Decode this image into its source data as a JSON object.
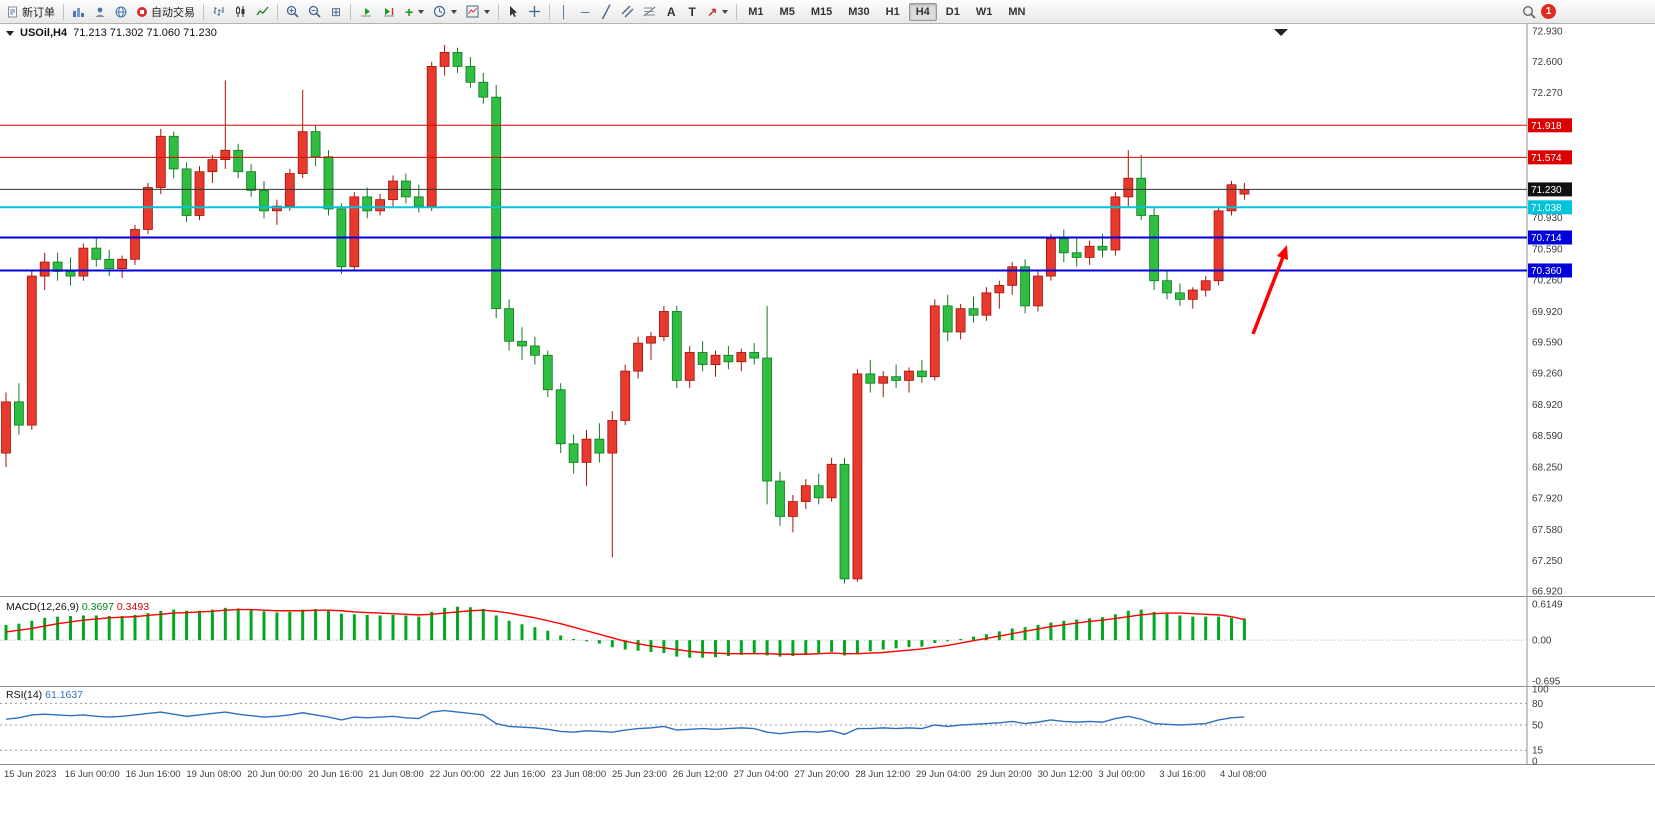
{
  "toolbar": {
    "new_order": "新订单",
    "autotrade": "自动交易",
    "timeframes": [
      "M1",
      "M5",
      "M15",
      "M30",
      "H1",
      "H4",
      "D1",
      "W1",
      "MN"
    ],
    "active_timeframe": "H4",
    "notification_count": "1",
    "icons": {
      "grid": "⊞",
      "indicators_plus": "+",
      "vertical_line": "│",
      "horizontal_line": "─",
      "trendline": "╱",
      "channel": "∥",
      "text": "A",
      "text_label": "T",
      "arrows": "↗"
    }
  },
  "chart": {
    "symbol": "USOil,H4",
    "ohlc": "71.213 71.302 71.060 71.230",
    "macd_name": "MACD(12,26,9)",
    "macd_main_value": "0.3697",
    "macd_signal_value": "0.3493",
    "rsi_name": "RSI(14)",
    "rsi_value": "61.1637"
  },
  "chart_data": {
    "type": "candlestick",
    "symbol": "USOil",
    "timeframe": "H4",
    "ohlc_display": {
      "open": 71.213,
      "high": 71.302,
      "low": 71.06,
      "close": 71.23
    },
    "up_color": "#e8392e",
    "up_border": "#a31408",
    "down_color": "#2fbe41",
    "down_border": "#117a1f",
    "price_axis_labels": [
      72.93,
      72.6,
      72.27,
      70.93,
      70.59,
      70.26,
      69.92,
      69.59,
      69.26,
      68.92,
      68.59,
      68.25,
      67.92,
      67.58,
      67.25,
      66.92
    ],
    "price_lines": [
      {
        "price": 71.918,
        "color": "#dd0000",
        "width": 1,
        "role": "resistance"
      },
      {
        "price": 71.574,
        "color": "#dd0000",
        "width": 1,
        "role": "resistance"
      },
      {
        "price": 71.23,
        "color": "#333333",
        "width": 1,
        "role": "current"
      },
      {
        "price": 71.038,
        "color": "#00c3dc",
        "width": 2,
        "role": "support"
      },
      {
        "price": 70.714,
        "color": "#0000dd",
        "width": 2,
        "role": "support"
      },
      {
        "price": 70.36,
        "color": "#0000dd",
        "width": 2,
        "role": "support"
      }
    ],
    "time_labels": [
      "15 Jun 2023",
      "16 Jun 00:00",
      "16 Jun 16:00",
      "19 Jun 08:00",
      "20 Jun 00:00",
      "20 Jun 16:00",
      "21 Jun 08:00",
      "22 Jun 00:00",
      "22 Jun 16:00",
      "23 Jun 08:00",
      "25 Jun 23:00",
      "26 Jun 12:00",
      "27 Jun 04:00",
      "27 Jun 20:00",
      "28 Jun 12:00",
      "29 Jun 04:00",
      "29 Jun 20:00",
      "30 Jun 12:00",
      "3 Jul 00:00",
      "3 Jul 16:00",
      "4 Jul 08:00"
    ],
    "candles": [
      [
        68.4,
        69.05,
        68.25,
        68.95
      ],
      [
        68.95,
        69.15,
        68.6,
        68.7
      ],
      [
        68.7,
        70.35,
        68.65,
        70.3
      ],
      [
        70.3,
        70.55,
        70.15,
        70.45
      ],
      [
        70.45,
        70.55,
        70.25,
        70.35
      ],
      [
        70.35,
        70.5,
        70.2,
        70.3
      ],
      [
        70.3,
        70.65,
        70.25,
        70.6
      ],
      [
        70.6,
        70.72,
        70.4,
        70.48
      ],
      [
        70.48,
        70.58,
        70.3,
        70.38
      ],
      [
        70.38,
        70.52,
        70.28,
        70.48
      ],
      [
        70.48,
        70.85,
        70.42,
        70.8
      ],
      [
        70.8,
        71.3,
        70.75,
        71.25
      ],
      [
        71.25,
        71.88,
        71.18,
        71.8
      ],
      [
        71.8,
        71.85,
        71.35,
        71.45
      ],
      [
        71.45,
        71.52,
        70.88,
        70.95
      ],
      [
        70.95,
        71.48,
        70.9,
        71.42
      ],
      [
        71.42,
        71.6,
        71.3,
        71.55
      ],
      [
        71.55,
        72.4,
        71.45,
        71.65
      ],
      [
        71.65,
        71.72,
        71.35,
        71.42
      ],
      [
        71.42,
        71.5,
        71.15,
        71.22
      ],
      [
        71.22,
        71.32,
        70.92,
        71.0
      ],
      [
        71.0,
        71.12,
        70.85,
        71.05
      ],
      [
        71.05,
        71.45,
        71.0,
        71.4
      ],
      [
        71.4,
        72.3,
        71.35,
        71.85
      ],
      [
        71.85,
        71.92,
        71.48,
        71.58
      ],
      [
        71.58,
        71.65,
        70.95,
        71.02
      ],
      [
        71.02,
        71.08,
        70.32,
        70.4
      ],
      [
        70.4,
        71.2,
        70.35,
        71.15
      ],
      [
        71.15,
        71.25,
        70.92,
        71.0
      ],
      [
        71.0,
        71.18,
        70.95,
        71.12
      ],
      [
        71.12,
        71.38,
        71.05,
        71.32
      ],
      [
        71.32,
        71.4,
        71.08,
        71.15
      ],
      [
        71.15,
        71.28,
        70.98,
        71.05
      ],
      [
        71.05,
        72.6,
        71.0,
        72.55
      ],
      [
        72.55,
        72.78,
        72.45,
        72.7
      ],
      [
        72.7,
        72.75,
        72.48,
        72.55
      ],
      [
        72.55,
        72.65,
        72.32,
        72.38
      ],
      [
        72.38,
        72.48,
        72.15,
        72.22
      ],
      [
        72.22,
        72.35,
        69.85,
        69.95
      ],
      [
        69.95,
        70.05,
        69.5,
        69.6
      ],
      [
        69.6,
        69.75,
        69.4,
        69.55
      ],
      [
        69.55,
        69.65,
        69.35,
        69.45
      ],
      [
        69.45,
        69.5,
        69.0,
        69.08
      ],
      [
        69.08,
        69.15,
        68.4,
        68.5
      ],
      [
        68.5,
        68.6,
        68.18,
        68.3
      ],
      [
        68.3,
        68.65,
        68.05,
        68.55
      ],
      [
        68.55,
        68.72,
        68.3,
        68.4
      ],
      [
        68.4,
        68.85,
        67.28,
        68.75
      ],
      [
        68.75,
        69.35,
        68.7,
        69.28
      ],
      [
        69.28,
        69.65,
        69.2,
        69.58
      ],
      [
        69.58,
        69.7,
        69.4,
        69.65
      ],
      [
        69.65,
        69.98,
        69.6,
        69.92
      ],
      [
        69.92,
        69.98,
        69.1,
        69.18
      ],
      [
        69.18,
        69.55,
        69.1,
        69.48
      ],
      [
        69.48,
        69.6,
        69.28,
        69.35
      ],
      [
        69.35,
        69.5,
        69.22,
        69.45
      ],
      [
        69.45,
        69.55,
        69.3,
        69.38
      ],
      [
        69.38,
        69.52,
        69.28,
        69.48
      ],
      [
        69.48,
        69.58,
        69.35,
        69.42
      ],
      [
        69.42,
        69.98,
        67.85,
        68.1
      ],
      [
        68.1,
        68.2,
        67.62,
        67.72
      ],
      [
        67.72,
        67.95,
        67.55,
        67.88
      ],
      [
        67.88,
        68.12,
        67.8,
        68.05
      ],
      [
        68.05,
        68.18,
        67.85,
        67.92
      ],
      [
        67.92,
        68.35,
        67.88,
        68.28
      ],
      [
        68.28,
        68.35,
        67.0,
        67.05
      ],
      [
        67.05,
        69.3,
        67.02,
        69.25
      ],
      [
        69.25,
        69.4,
        69.05,
        69.15
      ],
      [
        69.15,
        69.28,
        69.0,
        69.22
      ],
      [
        69.22,
        69.35,
        69.1,
        69.18
      ],
      [
        69.18,
        69.32,
        69.05,
        69.28
      ],
      [
        69.28,
        69.4,
        69.15,
        69.22
      ],
      [
        69.22,
        70.05,
        69.18,
        69.98
      ],
      [
        69.98,
        70.1,
        69.6,
        69.7
      ],
      [
        69.7,
        70.0,
        69.62,
        69.95
      ],
      [
        69.95,
        70.08,
        69.8,
        69.88
      ],
      [
        69.88,
        70.18,
        69.82,
        70.12
      ],
      [
        70.12,
        70.25,
        69.95,
        70.2
      ],
      [
        70.2,
        70.45,
        70.1,
        70.4
      ],
      [
        70.4,
        70.48,
        69.9,
        69.98
      ],
      [
        69.98,
        70.35,
        69.92,
        70.3
      ],
      [
        70.3,
        70.75,
        70.25,
        70.7
      ],
      [
        70.7,
        70.8,
        70.45,
        70.55
      ],
      [
        70.55,
        70.72,
        70.4,
        70.5
      ],
      [
        70.5,
        70.68,
        70.42,
        70.62
      ],
      [
        70.62,
        70.75,
        70.5,
        70.58
      ],
      [
        70.58,
        71.2,
        70.52,
        71.15
      ],
      [
        71.15,
        71.65,
        71.05,
        71.35
      ],
      [
        71.35,
        71.6,
        70.9,
        70.95
      ],
      [
        70.95,
        71.05,
        70.15,
        70.25
      ],
      [
        70.25,
        70.35,
        70.05,
        70.12
      ],
      [
        70.12,
        70.22,
        69.98,
        70.05
      ],
      [
        70.05,
        70.18,
        69.95,
        70.15
      ],
      [
        70.15,
        70.3,
        70.08,
        70.25
      ],
      [
        70.25,
        71.05,
        70.2,
        71.0
      ],
      [
        71.0,
        71.32,
        70.95,
        71.28
      ],
      [
        71.18,
        71.3,
        71.12,
        71.23
      ]
    ],
    "macd": {
      "params": "12,26,9",
      "value": 0.3697,
      "signal_value": 0.3493,
      "axis_labels": [
        "0.6149",
        "0.00",
        "-0.695"
      ],
      "hist_color": "#00a81e",
      "signal_color": "#ff0000",
      "histogram": [
        0.26,
        0.28,
        0.33,
        0.38,
        0.4,
        0.41,
        0.42,
        0.42,
        0.41,
        0.41,
        0.43,
        0.46,
        0.5,
        0.52,
        0.5,
        0.5,
        0.52,
        0.55,
        0.54,
        0.52,
        0.49,
        0.47,
        0.48,
        0.52,
        0.53,
        0.5,
        0.45,
        0.44,
        0.43,
        0.42,
        0.43,
        0.42,
        0.4,
        0.48,
        0.55,
        0.57,
        0.56,
        0.53,
        0.42,
        0.33,
        0.27,
        0.22,
        0.16,
        0.08,
        0.02,
        -0.02,
        -0.06,
        -0.12,
        -0.16,
        -0.18,
        -0.2,
        -0.22,
        -0.28,
        -0.3,
        -0.3,
        -0.29,
        -0.27,
        -0.25,
        -0.23,
        -0.26,
        -0.28,
        -0.27,
        -0.25,
        -0.23,
        -0.2,
        -0.26,
        -0.22,
        -0.19,
        -0.16,
        -0.14,
        -0.12,
        -0.11,
        -0.05,
        -0.02,
        0.02,
        0.06,
        0.1,
        0.15,
        0.2,
        0.22,
        0.26,
        0.3,
        0.33,
        0.35,
        0.37,
        0.39,
        0.44,
        0.5,
        0.52,
        0.48,
        0.45,
        0.42,
        0.4,
        0.4,
        0.4,
        0.38,
        0.37
      ],
      "signal": [
        0.14,
        0.17,
        0.2,
        0.24,
        0.28,
        0.31,
        0.34,
        0.36,
        0.38,
        0.39,
        0.4,
        0.42,
        0.44,
        0.46,
        0.47,
        0.48,
        0.49,
        0.51,
        0.52,
        0.52,
        0.51,
        0.5,
        0.5,
        0.5,
        0.51,
        0.51,
        0.5,
        0.48,
        0.47,
        0.46,
        0.45,
        0.44,
        0.43,
        0.44,
        0.46,
        0.48,
        0.5,
        0.51,
        0.49,
        0.46,
        0.42,
        0.38,
        0.33,
        0.28,
        0.22,
        0.16,
        0.1,
        0.04,
        -0.02,
        -0.06,
        -0.1,
        -0.13,
        -0.16,
        -0.19,
        -0.21,
        -0.22,
        -0.23,
        -0.23,
        -0.23,
        -0.23,
        -0.24,
        -0.24,
        -0.24,
        -0.23,
        -0.22,
        -0.23,
        -0.23,
        -0.22,
        -0.21,
        -0.19,
        -0.17,
        -0.15,
        -0.12,
        -0.09,
        -0.05,
        -0.01,
        0.03,
        0.07,
        0.11,
        0.15,
        0.19,
        0.23,
        0.26,
        0.29,
        0.32,
        0.34,
        0.37,
        0.4,
        0.43,
        0.45,
        0.46,
        0.46,
        0.45,
        0.44,
        0.43,
        0.4,
        0.35
      ]
    },
    "rsi": {
      "period": 14,
      "value": 61.1637,
      "axis_labels": [
        100,
        80,
        50,
        15,
        0
      ],
      "levels": [
        80,
        50,
        15
      ],
      "color": "#2e6fc2",
      "values": [
        58,
        60,
        64,
        65,
        64,
        63,
        64,
        62,
        61,
        62,
        64,
        66,
        68,
        65,
        62,
        64,
        66,
        68,
        65,
        63,
        61,
        62,
        64,
        67,
        64,
        61,
        57,
        61,
        60,
        61,
        62,
        60,
        59,
        68,
        70,
        68,
        66,
        64,
        52,
        48,
        47,
        46,
        44,
        41,
        40,
        42,
        41,
        40,
        43,
        45,
        46,
        48,
        43,
        44,
        45,
        44,
        45,
        46,
        45,
        40,
        38,
        40,
        41,
        40,
        42,
        37,
        45,
        45,
        46,
        45,
        46,
        45,
        50,
        48,
        50,
        51,
        52,
        53,
        55,
        52,
        54,
        57,
        55,
        54,
        55,
        54,
        59,
        62,
        58,
        52,
        51,
        50,
        51,
        52,
        57,
        60,
        61.16
      ],
      "note_red_up_green_down": true
    },
    "annotation_arrow": {
      "type": "arrow",
      "color": "#ff0000",
      "direction": "up"
    }
  }
}
